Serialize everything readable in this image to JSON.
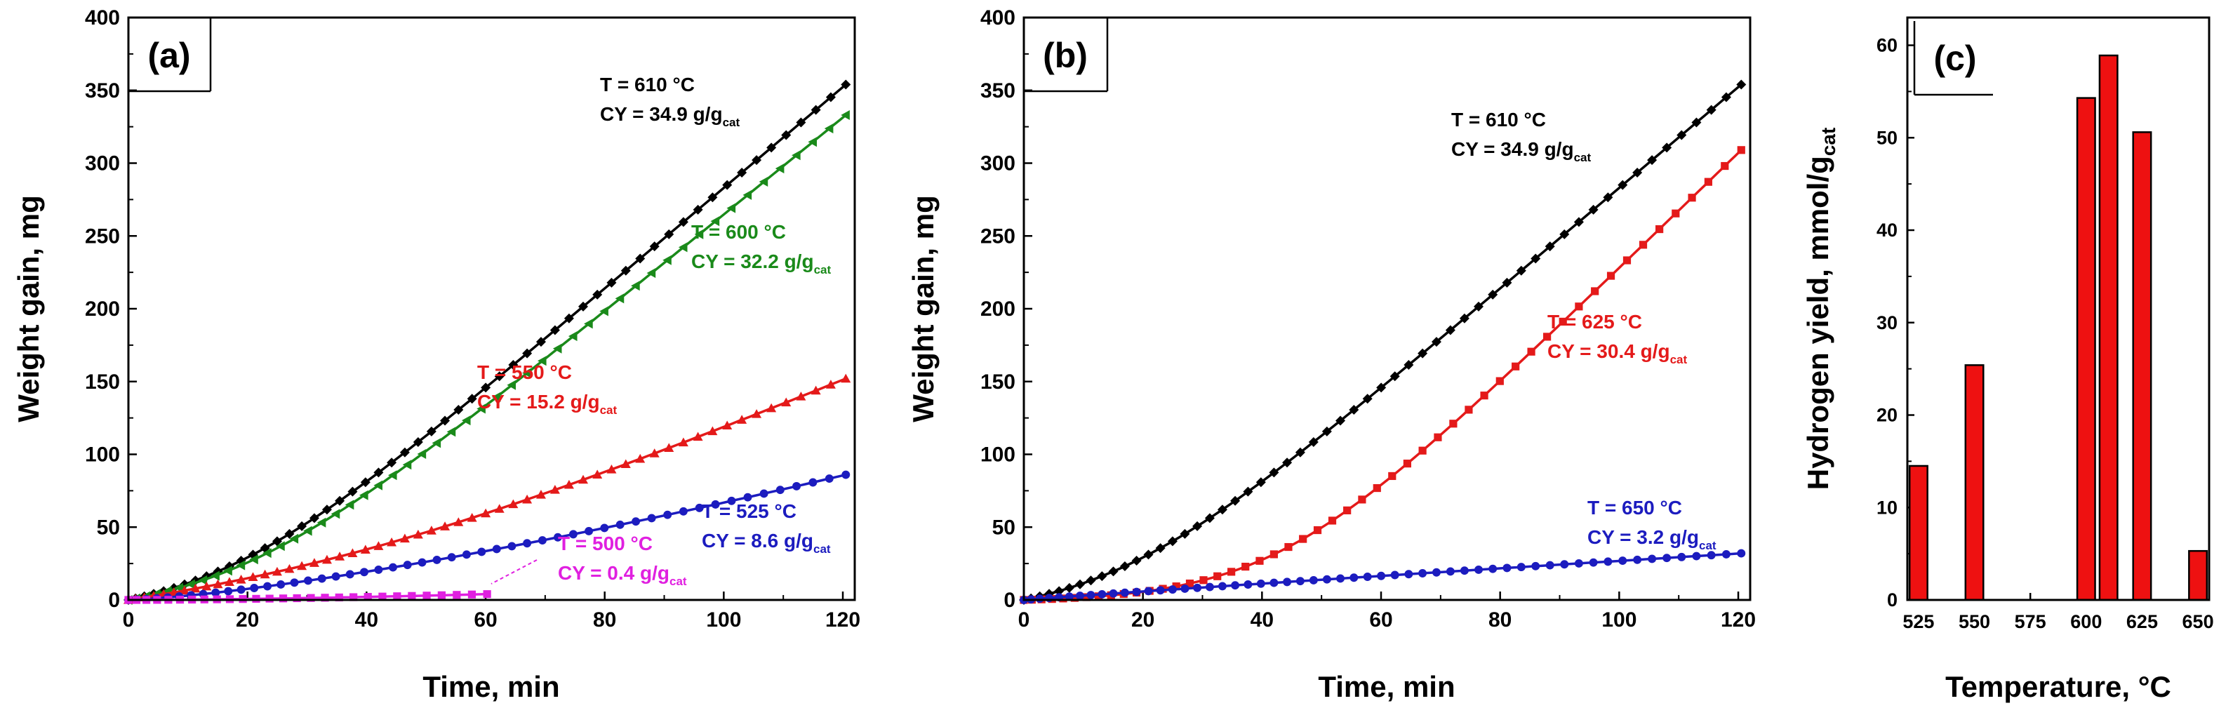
{
  "chart_data": [
    {
      "panel": "(a)",
      "type": "line",
      "xlabel": "Time, min",
      "ylabel": "Weight gain, mg",
      "xlim": [
        0,
        122
      ],
      "ylim": [
        0,
        400
      ],
      "xticks": [
        "0",
        "20",
        "40",
        "60",
        "80",
        "100",
        "120"
      ],
      "yticks": [
        "0",
        "50",
        "100",
        "150",
        "200",
        "250",
        "300",
        "350",
        "400"
      ],
      "series": [
        {
          "name": "T = 610 °C",
          "color": "#000000",
          "marker": "diamond",
          "final_value": 354,
          "annotation": {
            "line1": "T = 610 °C",
            "line2": "CY = 34.9 g/g",
            "sub": "cat"
          }
        },
        {
          "name": "T = 600 °C",
          "color": "#1a8a1a",
          "marker": "triangle-left",
          "final_value": 333,
          "annotation": {
            "line1": "T = 600 °C",
            "line2": "CY = 32.2 g/g",
            "sub": "cat"
          }
        },
        {
          "name": "T = 550 °C",
          "color": "#e41a1a",
          "marker": "triangle-up",
          "final_value": 152,
          "annotation": {
            "line1": "T = 550 °C",
            "line2": "CY = 15.2 g/g",
            "sub": "cat"
          }
        },
        {
          "name": "T = 525 °C",
          "color": "#1c1cbf",
          "marker": "circle",
          "final_value": 86,
          "annotation": {
            "line1": "T = 525 °C",
            "line2": "CY = 8.6 g/g",
            "sub": "cat"
          }
        },
        {
          "name": "T = 500 °C",
          "color": "#e020e0",
          "marker": "square",
          "final_value": 4,
          "annotation": {
            "line1": "T = 500 °C",
            "line2": "CY = 0.4 g/g",
            "sub": "cat"
          }
        }
      ]
    },
    {
      "panel": "(b)",
      "type": "line",
      "xlabel": "Time, min",
      "ylabel": "Weight gain, mg",
      "xlim": [
        0,
        122
      ],
      "ylim": [
        0,
        400
      ],
      "xticks": [
        "0",
        "20",
        "40",
        "60",
        "80",
        "100",
        "120"
      ],
      "yticks": [
        "0",
        "50",
        "100",
        "150",
        "200",
        "250",
        "300",
        "350",
        "400"
      ],
      "series": [
        {
          "name": "T = 610 °C",
          "color": "#000000",
          "marker": "diamond",
          "final_value": 354,
          "annotation": {
            "line1": "T = 610 °C",
            "line2": "CY = 34.9 g/g",
            "sub": "cat"
          }
        },
        {
          "name": "T = 625 °C",
          "color": "#e41a1a",
          "marker": "square",
          "final_value": 309,
          "annotation": {
            "line1": "T = 625 °C",
            "line2": "CY = 30.4 g/g",
            "sub": "cat"
          }
        },
        {
          "name": "T = 650 °C",
          "color": "#1c1cbf",
          "marker": "circle",
          "final_value": 32,
          "annotation": {
            "line1": "T = 650 °C",
            "line2": "CY = 3.2 g/g",
            "sub": "cat"
          }
        }
      ]
    },
    {
      "panel": "(c)",
      "type": "bar",
      "xlabel": "Temperature, °C",
      "ylabel": "Hydrogen yield, mmol/g",
      "ylabel_sub": "cat",
      "categories": [
        525,
        550,
        600,
        610,
        625,
        650
      ],
      "values": [
        14.5,
        25.4,
        54.3,
        58.9,
        50.6,
        5.3
      ],
      "xlim": [
        520,
        655
      ],
      "ylim": [
        0,
        63
      ],
      "xticks": [
        "525",
        "550",
        "575",
        "600",
        "625",
        "650"
      ],
      "yticks": [
        "0",
        "10",
        "20",
        "30",
        "40",
        "50",
        "60"
      ],
      "bar_color": "#ee1111"
    }
  ]
}
